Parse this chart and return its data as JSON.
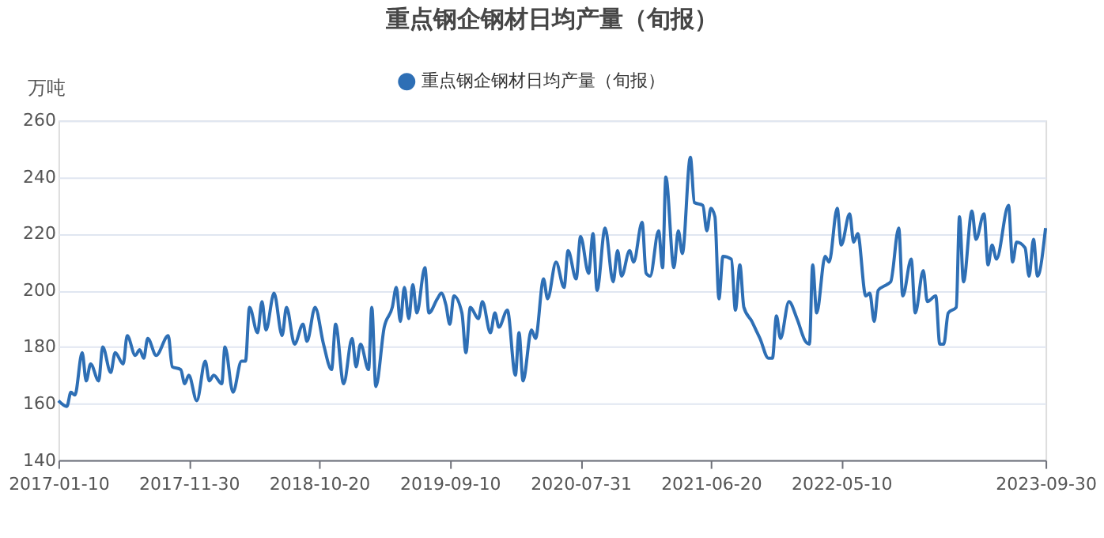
{
  "chart_data": {
    "type": "line",
    "title": "重点钢企钢材日均产量（旬报）",
    "ylabel": "万吨",
    "xlim": [
      "2017-01-10",
      "2023-09-30"
    ],
    "xticks": [
      "2017-01-10",
      "2017-11-30",
      "2018-10-20",
      "2019-09-10",
      "2020-07-31",
      "2021-06-20",
      "2022-05-10",
      "2023-09-30"
    ],
    "ylim": [
      140,
      260
    ],
    "yticks": [
      140,
      160,
      180,
      200,
      220,
      240,
      260
    ],
    "grid": "y",
    "legend": "top",
    "line_style": "solid",
    "series": [
      {
        "name": "重点钢企钢材日均产量（旬报）",
        "color": "#2e6fb5",
        "x": [
          "2017-01-10",
          "2017-01-31",
          "2017-02-10",
          "2017-02-20",
          "2017-03-10",
          "2017-03-20",
          "2017-03-31",
          "2017-04-20",
          "2017-04-30",
          "2017-05-20",
          "2017-05-31",
          "2017-06-20",
          "2017-06-30",
          "2017-07-20",
          "2017-07-31",
          "2017-08-10",
          "2017-08-20",
          "2017-09-10",
          "2017-10-10",
          "2017-10-20",
          "2017-11-10",
          "2017-11-20",
          "2017-11-30",
          "2017-12-20",
          "2018-01-10",
          "2018-01-20",
          "2018-01-31",
          "2018-02-20",
          "2018-02-28",
          "2018-03-20",
          "2018-04-10",
          "2018-04-20",
          "2018-04-30",
          "2018-05-20",
          "2018-05-31",
          "2018-06-10",
          "2018-06-30",
          "2018-07-20",
          "2018-07-31",
          "2018-08-20",
          "2018-09-10",
          "2018-09-20",
          "2018-10-10",
          "2018-10-31",
          "2018-11-20",
          "2018-11-30",
          "2018-12-20",
          "2019-01-10",
          "2019-01-20",
          "2019-01-31",
          "2019-02-20",
          "2019-02-28",
          "2019-03-10",
          "2019-03-31",
          "2019-04-20",
          "2019-04-30",
          "2019-05-10",
          "2019-05-20",
          "2019-05-31",
          "2019-06-10",
          "2019-06-20",
          "2019-07-10",
          "2019-07-20",
          "2019-08-10",
          "2019-08-20",
          "2019-08-31",
          "2019-09-10",
          "2019-09-20",
          "2019-10-10",
          "2019-10-20",
          "2019-10-31",
          "2019-11-20",
          "2019-11-30",
          "2019-12-20",
          "2019-12-31",
          "2020-01-10",
          "2020-01-31",
          "2020-02-20",
          "2020-02-29",
          "2020-03-10",
          "2020-03-31",
          "2020-04-10",
          "2020-04-30",
          "2020-05-10",
          "2020-05-31",
          "2020-06-20",
          "2020-06-30",
          "2020-07-20",
          "2020-07-31",
          "2020-08-20",
          "2020-08-31",
          "2020-09-10",
          "2020-09-30",
          "2020-10-20",
          "2020-10-31",
          "2020-11-10",
          "2020-11-30",
          "2020-12-10",
          "2020-12-31",
          "2021-01-10",
          "2021-01-20",
          "2021-02-10",
          "2021-02-20",
          "2021-02-28",
          "2021-03-20",
          "2021-03-31",
          "2021-04-10",
          "2021-04-30",
          "2021-05-10",
          "2021-05-31",
          "2021-06-10",
          "2021-06-20",
          "2021-06-30",
          "2021-07-10",
          "2021-07-20",
          "2021-08-10",
          "2021-08-20",
          "2021-08-31",
          "2021-09-10",
          "2021-09-30",
          "2021-10-10",
          "2021-10-20",
          "2021-11-10",
          "2021-11-20",
          "2021-11-30",
          "2021-12-10",
          "2021-12-31",
          "2022-01-20",
          "2022-02-10",
          "2022-02-20",
          "2022-02-28",
          "2022-03-10",
          "2022-03-31",
          "2022-04-10",
          "2022-04-30",
          "2022-05-10",
          "2022-05-31",
          "2022-06-10",
          "2022-06-20",
          "2022-07-10",
          "2022-07-20",
          "2022-07-31",
          "2022-08-10",
          "2022-08-31",
          "2022-09-10",
          "2022-09-30",
          "2022-10-10",
          "2022-10-31",
          "2022-11-10",
          "2022-11-30",
          "2022-12-10",
          "2022-12-31",
          "2023-01-10",
          "2023-01-20",
          "2023-01-31",
          "2023-02-20",
          "2023-02-28",
          "2023-03-10",
          "2023-03-31",
          "2023-04-10",
          "2023-04-30",
          "2023-05-10",
          "2023-05-20",
          "2023-05-31",
          "2023-06-30",
          "2023-07-10",
          "2023-07-20",
          "2023-08-10",
          "2023-08-20",
          "2023-08-31",
          "2023-09-10",
          "2023-09-30"
        ],
        "values": [
          161,
          159,
          164,
          163,
          178,
          168,
          174,
          168,
          180,
          171,
          178,
          174,
          184,
          177,
          179,
          176,
          183,
          177,
          184,
          173,
          172,
          167,
          170,
          161,
          175,
          168,
          170,
          167,
          180,
          164,
          175,
          175,
          194,
          185,
          196,
          186,
          199,
          184,
          194,
          181,
          188,
          182,
          194,
          181,
          172,
          188,
          167,
          183,
          173,
          181,
          172,
          194,
          166,
          187,
          194,
          201,
          189,
          201,
          190,
          202,
          192,
          208,
          192,
          197,
          199,
          195,
          188,
          198,
          192,
          178,
          194,
          190,
          196,
          185,
          192,
          187,
          193,
          170,
          185,
          168,
          186,
          183,
          204,
          197,
          210,
          201,
          214,
          204,
          219,
          206,
          220,
          200,
          222,
          203,
          214,
          205,
          214,
          210,
          224,
          206,
          205,
          221,
          208,
          240,
          208,
          221,
          213,
          247,
          231,
          230,
          221,
          229,
          226,
          197,
          212,
          211,
          193,
          209,
          194,
          189,
          186,
          183,
          176,
          176,
          191,
          183,
          196,
          190,
          182,
          181,
          209,
          192,
          212,
          210,
          229,
          216,
          227,
          217,
          220,
          198,
          199,
          189,
          200,
          202,
          203,
          222,
          198,
          211,
          192,
          207,
          196,
          198,
          181,
          181,
          192,
          194,
          226,
          203,
          228,
          218,
          227,
          209,
          216,
          211,
          230,
          210,
          217,
          215,
          205,
          218,
          205,
          222
        ]
      }
    ]
  }
}
